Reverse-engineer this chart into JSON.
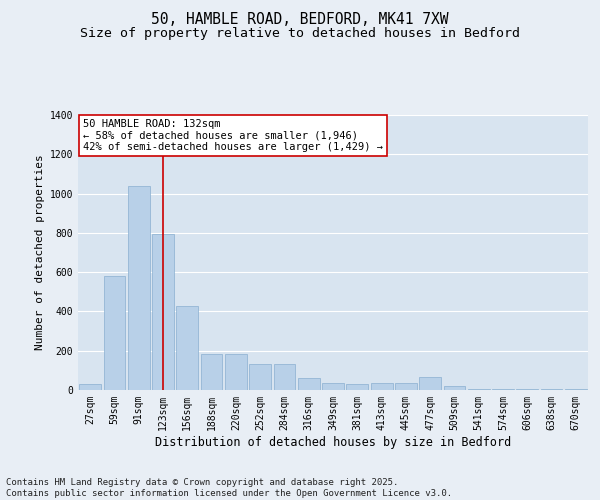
{
  "title1": "50, HAMBLE ROAD, BEDFORD, MK41 7XW",
  "title2": "Size of property relative to detached houses in Bedford",
  "xlabel": "Distribution of detached houses by size in Bedford",
  "ylabel": "Number of detached properties",
  "categories": [
    "27sqm",
    "59sqm",
    "91sqm",
    "123sqm",
    "156sqm",
    "188sqm",
    "220sqm",
    "252sqm",
    "284sqm",
    "316sqm",
    "349sqm",
    "381sqm",
    "413sqm",
    "445sqm",
    "477sqm",
    "509sqm",
    "541sqm",
    "574sqm",
    "606sqm",
    "638sqm",
    "670sqm"
  ],
  "values": [
    30,
    580,
    1040,
    795,
    430,
    185,
    185,
    130,
    130,
    60,
    35,
    30,
    35,
    35,
    65,
    20,
    5,
    5,
    5,
    5,
    5
  ],
  "bar_color": "#b8d0e8",
  "bar_edge_color": "#8aafd0",
  "vline_index": 3,
  "vline_color": "#cc0000",
  "annotation_line1": "50 HAMBLE ROAD: 132sqm",
  "annotation_line2": "← 58% of detached houses are smaller (1,946)",
  "annotation_line3": "42% of semi-detached houses are larger (1,429) →",
  "annotation_box_color": "#ffffff",
  "annotation_box_edge": "#cc0000",
  "ylim": [
    0,
    1400
  ],
  "yticks": [
    0,
    200,
    400,
    600,
    800,
    1000,
    1200,
    1400
  ],
  "background_color": "#e8eef5",
  "plot_bg_color": "#d8e4f0",
  "grid_color": "#ffffff",
  "footer_text": "Contains HM Land Registry data © Crown copyright and database right 2025.\nContains public sector information licensed under the Open Government Licence v3.0.",
  "title1_fontsize": 10.5,
  "title2_fontsize": 9.5,
  "xlabel_fontsize": 8.5,
  "ylabel_fontsize": 8,
  "tick_fontsize": 7,
  "annotation_fontsize": 7.5,
  "footer_fontsize": 6.5
}
